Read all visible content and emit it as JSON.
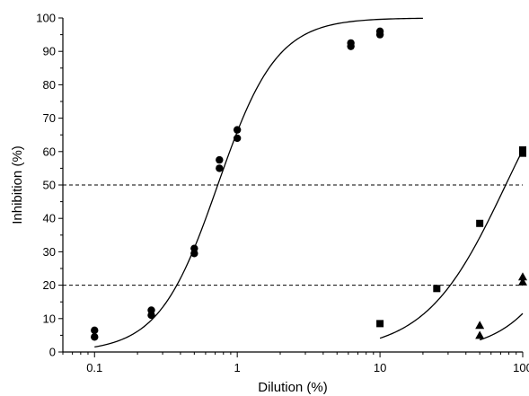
{
  "chart_data": {
    "type": "scatter",
    "xlabel": "Dilution (%)",
    "ylabel": "Inhibition (%)",
    "xscale": "log",
    "xlim": [
      0.06,
      100
    ],
    "ylim": [
      0,
      100
    ],
    "xticks": [
      0.1,
      1,
      10,
      100
    ],
    "xtick_labels": [
      "0.1",
      "1",
      "10",
      "100"
    ],
    "yticks": [
      0,
      10,
      20,
      30,
      40,
      50,
      60,
      70,
      80,
      90,
      100
    ],
    "ytick_labels": [
      "0",
      "10",
      "20",
      "30",
      "40",
      "50",
      "60",
      "70",
      "80",
      "90",
      "100"
    ],
    "grid": false,
    "reference_lines": [
      {
        "axis": "y",
        "value": 50,
        "style": "dashed"
      },
      {
        "axis": "y",
        "value": 20,
        "style": "dashed"
      }
    ],
    "series": [
      {
        "marker": "circle",
        "x": [
          0.1,
          0.1,
          0.25,
          0.25,
          0.5,
          0.5,
          0.75,
          0.75,
          1,
          1,
          6.25,
          6.25,
          10,
          10
        ],
        "y": [
          4.5,
          6.5,
          11,
          12.5,
          29.5,
          31,
          55,
          57.5,
          64,
          66.5,
          91.5,
          92.5,
          95,
          96
        ],
        "fit": {
          "model": "logistic",
          "top": 100,
          "ec50": 0.73,
          "hill": 2.1,
          "x_range": [
            0.1,
            20
          ]
        }
      },
      {
        "marker": "square",
        "x": [
          10,
          25,
          50,
          100,
          100
        ],
        "y": [
          8.5,
          19,
          38.5,
          59.5,
          60.5
        ],
        "fit": {
          "model": "logistic",
          "top": 100,
          "ec50": 76,
          "hill": 1.55,
          "x_range": [
            10,
            100
          ]
        }
      },
      {
        "marker": "triangle",
        "x": [
          50,
          50,
          100,
          100
        ],
        "y": [
          5,
          8,
          21,
          22.5
        ],
        "fit": {
          "model": "logistic",
          "top": 100,
          "ec50": 310,
          "hill": 1.8,
          "x_range": [
            50,
            100
          ]
        }
      }
    ]
  }
}
